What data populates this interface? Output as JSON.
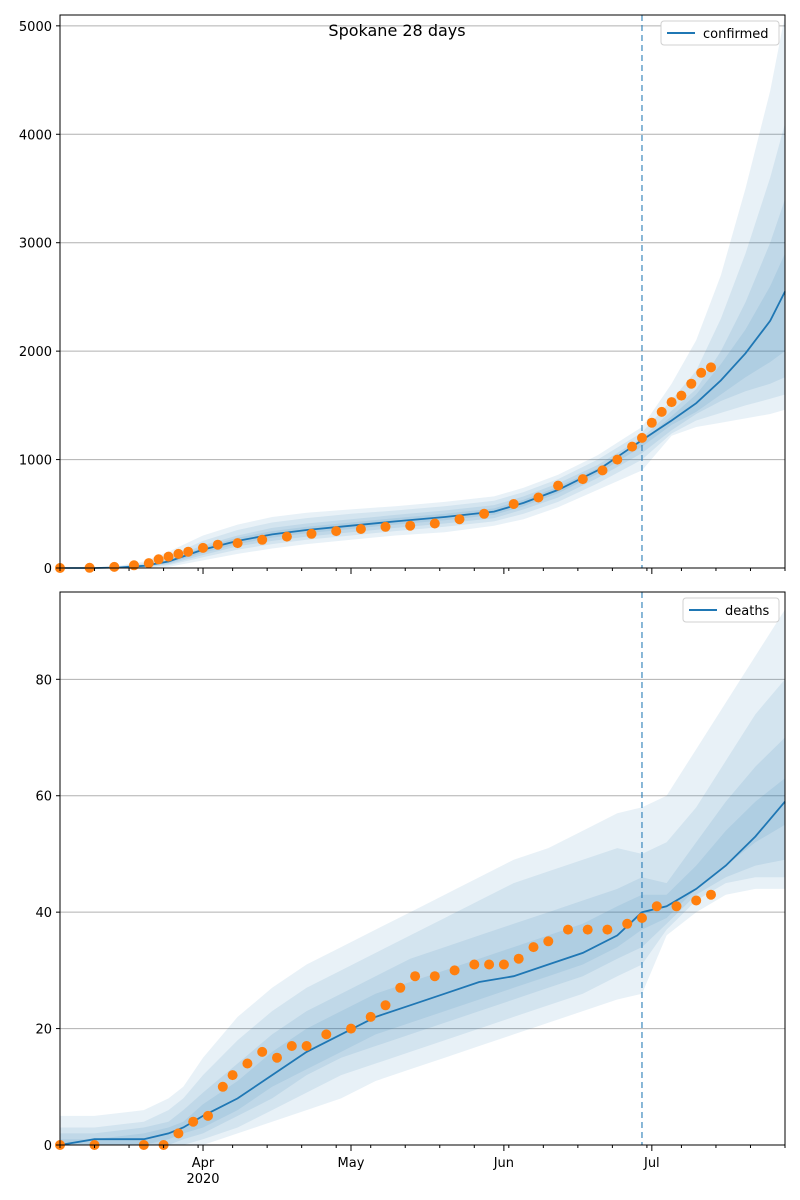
{
  "figure": {
    "title": "Spokane 28 days",
    "x_tick_labels": [
      "Apr",
      "May",
      "Jun",
      "Jul"
    ],
    "x_year_label": "2020"
  },
  "colors": {
    "model_line": "#1f77b4",
    "observed_points": "#ff7f0e",
    "band": "#1f77b4",
    "grid": "#b0b0b0",
    "divider": "#1f77b4"
  },
  "chart_data": [
    {
      "type": "line",
      "name": "confirmed",
      "legend": "confirmed",
      "legend_position": "top-right",
      "grid": "horizontal",
      "xlim": [
        "2020-03-03",
        "2020-07-28"
      ],
      "ylim": [
        0,
        5100
      ],
      "yticks": [
        0,
        1000,
        2000,
        3000,
        4000,
        5000
      ],
      "forecast_start": "2020-06-29",
      "model": {
        "x": [
          "2020-03-03",
          "2020-03-10",
          "2020-03-15",
          "2020-03-20",
          "2020-03-25",
          "2020-04-01",
          "2020-04-08",
          "2020-04-15",
          "2020-04-22",
          "2020-05-01",
          "2020-05-10",
          "2020-05-20",
          "2020-05-30",
          "2020-06-05",
          "2020-06-12",
          "2020-06-20",
          "2020-06-29",
          "2020-07-05",
          "2020-07-10",
          "2020-07-15",
          "2020-07-20",
          "2020-07-25",
          "2020-07-28"
        ],
        "y": [
          0,
          0,
          5,
          20,
          60,
          170,
          250,
          310,
          350,
          390,
          430,
          470,
          520,
          600,
          720,
          900,
          1180,
          1360,
          1520,
          1730,
          1980,
          2280,
          2550
        ]
      },
      "bands": [
        {
          "upper": [
            5,
            5,
            20,
            60,
            150,
            300,
            400,
            470,
            510,
            540,
            570,
            610,
            660,
            740,
            860,
            1040,
            1300,
            1700,
            2100,
            2700,
            3500,
            4400,
            5100
          ],
          "lower": [
            0,
            0,
            0,
            0,
            10,
            70,
            130,
            180,
            220,
            260,
            300,
            330,
            390,
            450,
            560,
            720,
            900,
            1220,
            1300,
            1340,
            1380,
            1420,
            1460
          ]
        },
        {
          "upper": [
            5,
            5,
            15,
            45,
            110,
            250,
            350,
            420,
            460,
            500,
            530,
            570,
            620,
            700,
            820,
            1000,
            1250,
            1550,
            1820,
            2300,
            2900,
            3600,
            4100
          ],
          "lower": [
            0,
            0,
            0,
            5,
            25,
            100,
            170,
            220,
            260,
            300,
            340,
            380,
            430,
            500,
            610,
            780,
            1000,
            1240,
            1360,
            1430,
            1500,
            1560,
            1600
          ]
        },
        {
          "upper": [
            5,
            5,
            10,
            35,
            85,
            210,
            300,
            370,
            410,
            450,
            490,
            530,
            580,
            660,
            780,
            950,
            1200,
            1450,
            1650,
            2000,
            2450,
            3000,
            3400
          ],
          "lower": [
            0,
            0,
            0,
            8,
            35,
            120,
            200,
            250,
            290,
            330,
            370,
            410,
            460,
            540,
            650,
            830,
            1060,
            1270,
            1420,
            1540,
            1630,
            1700,
            1760
          ]
        },
        {
          "upper": [
            2,
            2,
            8,
            28,
            70,
            190,
            280,
            340,
            380,
            420,
            460,
            500,
            550,
            630,
            750,
            920,
            1170,
            1400,
            1600,
            1880,
            2200,
            2600,
            2900
          ],
          "lower": [
            0,
            0,
            2,
            12,
            45,
            140,
            220,
            280,
            320,
            360,
            400,
            440,
            490,
            570,
            690,
            870,
            1120,
            1320,
            1440,
            1600,
            1760,
            1900,
            2000
          ]
        }
      ],
      "observed": {
        "x": [
          "2020-03-03",
          "2020-03-09",
          "2020-03-14",
          "2020-03-18",
          "2020-03-21",
          "2020-03-23",
          "2020-03-25",
          "2020-03-27",
          "2020-03-29",
          "2020-04-01",
          "2020-04-04",
          "2020-04-08",
          "2020-04-13",
          "2020-04-18",
          "2020-04-23",
          "2020-04-28",
          "2020-05-03",
          "2020-05-08",
          "2020-05-13",
          "2020-05-18",
          "2020-05-23",
          "2020-05-28",
          "2020-06-03",
          "2020-06-08",
          "2020-06-12",
          "2020-06-17",
          "2020-06-21",
          "2020-06-24",
          "2020-06-27",
          "2020-06-29",
          "2020-07-01",
          "2020-07-03",
          "2020-07-05",
          "2020-07-07",
          "2020-07-09",
          "2020-07-11",
          "2020-07-13"
        ],
        "y": [
          0,
          2,
          10,
          25,
          45,
          80,
          105,
          130,
          150,
          185,
          215,
          230,
          260,
          290,
          315,
          340,
          360,
          380,
          390,
          410,
          450,
          500,
          590,
          650,
          760,
          820,
          900,
          1000,
          1120,
          1200,
          1340,
          1440,
          1530,
          1590,
          1700,
          1800,
          1850
        ]
      }
    },
    {
      "type": "line",
      "name": "deaths",
      "legend": "deaths",
      "legend_position": "top-right",
      "grid": "horizontal",
      "xlim": [
        "2020-03-03",
        "2020-07-28"
      ],
      "ylim": [
        0,
        95
      ],
      "yticks": [
        0,
        20,
        40,
        60,
        80
      ],
      "forecast_start": "2020-06-29",
      "model": {
        "x": [
          "2020-03-03",
          "2020-03-10",
          "2020-03-20",
          "2020-03-25",
          "2020-03-28",
          "2020-04-01",
          "2020-04-08",
          "2020-04-15",
          "2020-04-22",
          "2020-04-29",
          "2020-05-06",
          "2020-05-13",
          "2020-05-20",
          "2020-05-27",
          "2020-06-03",
          "2020-06-10",
          "2020-06-17",
          "2020-06-24",
          "2020-06-29",
          "2020-07-04",
          "2020-07-10",
          "2020-07-16",
          "2020-07-22",
          "2020-07-28"
        ],
        "y": [
          0,
          1,
          1,
          2,
          3,
          5,
          8,
          12,
          16,
          19,
          22,
          24,
          26,
          28,
          29,
          31,
          33,
          36,
          40,
          41,
          44,
          48,
          53,
          59
        ]
      },
      "bands": [
        {
          "upper": [
            5,
            5,
            6,
            8,
            10,
            15,
            22,
            27,
            31,
            34,
            37,
            40,
            43,
            46,
            49,
            51,
            54,
            57,
            58,
            60,
            68,
            76,
            84,
            92
          ],
          "lower": [
            0,
            0,
            0,
            0,
            0,
            0,
            2,
            4,
            6,
            8,
            11,
            13,
            15,
            17,
            19,
            21,
            23,
            25,
            26,
            36,
            40,
            43,
            44,
            44
          ]
        },
        {
          "upper": [
            3,
            3,
            4,
            6,
            8,
            12,
            18,
            23,
            27,
            30,
            33,
            36,
            39,
            42,
            45,
            47,
            49,
            51,
            50,
            52,
            58,
            66,
            74,
            80
          ],
          "lower": [
            0,
            0,
            0,
            0,
            0,
            1,
            3,
            6,
            9,
            12,
            14,
            16,
            18,
            20,
            22,
            24,
            26,
            29,
            31,
            37,
            42,
            45,
            46,
            46
          ]
        },
        {
          "upper": [
            2,
            2,
            3,
            4,
            6,
            9,
            14,
            19,
            23,
            26,
            29,
            32,
            34,
            36,
            38,
            40,
            42,
            44,
            46,
            45,
            52,
            59,
            65,
            70
          ],
          "lower": [
            0,
            0,
            0,
            0,
            1,
            2,
            5,
            8,
            12,
            15,
            17,
            19,
            21,
            23,
            25,
            27,
            29,
            32,
            34,
            38,
            43,
            46,
            48,
            49
          ]
        },
        {
          "upper": [
            1,
            1,
            2,
            3,
            4,
            7,
            11,
            16,
            20,
            23,
            26,
            28,
            30,
            32,
            34,
            36,
            38,
            41,
            43,
            43,
            48,
            54,
            59,
            63
          ],
          "lower": [
            0,
            0,
            0,
            1,
            2,
            3,
            6,
            10,
            13,
            16,
            19,
            21,
            23,
            25,
            27,
            29,
            31,
            34,
            37,
            39,
            44,
            48,
            52,
            55
          ]
        }
      ],
      "observed": {
        "x": [
          "2020-03-03",
          "2020-03-10",
          "2020-03-20",
          "2020-03-24",
          "2020-03-27",
          "2020-03-30",
          "2020-04-02",
          "2020-04-05",
          "2020-04-07",
          "2020-04-10",
          "2020-04-13",
          "2020-04-16",
          "2020-04-19",
          "2020-04-22",
          "2020-04-26",
          "2020-05-01",
          "2020-05-05",
          "2020-05-08",
          "2020-05-11",
          "2020-05-14",
          "2020-05-18",
          "2020-05-22",
          "2020-05-26",
          "2020-05-29",
          "2020-06-01",
          "2020-06-04",
          "2020-06-07",
          "2020-06-10",
          "2020-06-14",
          "2020-06-18",
          "2020-06-22",
          "2020-06-26",
          "2020-06-29",
          "2020-07-02",
          "2020-07-06",
          "2020-07-10",
          "2020-07-13"
        ],
        "y": [
          0,
          0,
          0,
          0,
          2,
          4,
          5,
          10,
          12,
          14,
          16,
          15,
          17,
          17,
          19,
          20,
          22,
          24,
          27,
          29,
          29,
          30,
          31,
          31,
          31,
          32,
          34,
          35,
          37,
          37,
          37,
          38,
          39,
          41,
          41,
          42,
          43
        ]
      }
    }
  ]
}
